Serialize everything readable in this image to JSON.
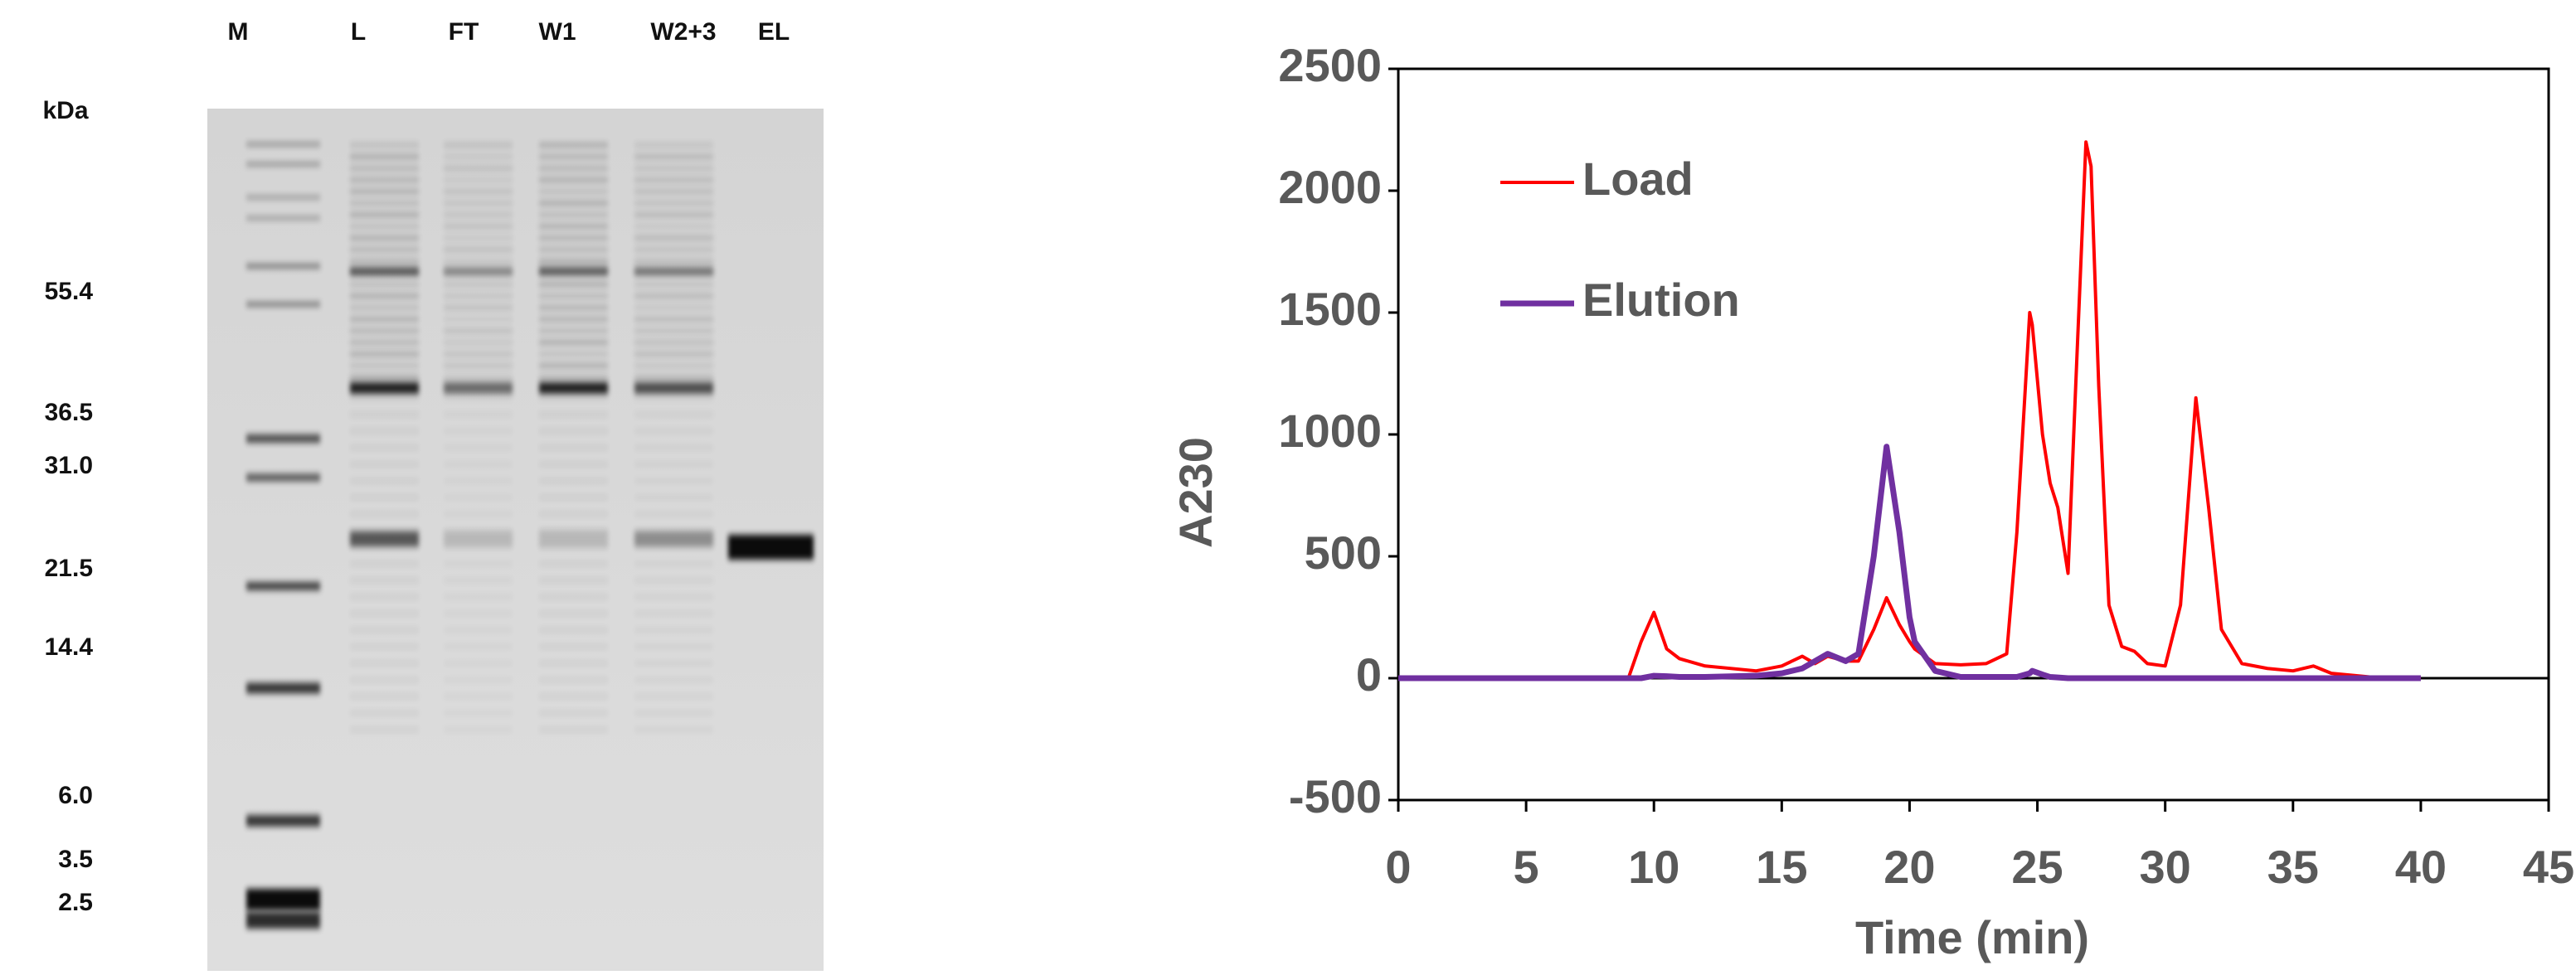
{
  "gel": {
    "lanes": [
      "M",
      "L",
      "FT",
      "W1",
      "W2+3",
      "EL"
    ],
    "unit": "kDa",
    "markers": [
      "55.4",
      "36.5",
      "31.0",
      "21.5",
      "14.4",
      "6.0",
      "3.5",
      "2.5"
    ]
  },
  "chart_data": {
    "type": "line",
    "xlabel": "Time (min)",
    "ylabel": "A230",
    "x": [
      0,
      5,
      9,
      9.5,
      10,
      10.5,
      11,
      12,
      14,
      15,
      15.8,
      16.3,
      16.8,
      17.5,
      18,
      18.6,
      19.1,
      19.6,
      20,
      20.2,
      21,
      22,
      23,
      23.8,
      24.2,
      24.7,
      24.8,
      25.2,
      25.5,
      25.8,
      26.2,
      26.5,
      26.9,
      27.1,
      27.4,
      27.8,
      28.3,
      28.8,
      29.3,
      30,
      30.6,
      31.2,
      31.7,
      32.2,
      33,
      34,
      35,
      35.8,
      36.5,
      38,
      40
    ],
    "series": [
      {
        "name": "Load",
        "color": "#ff0000",
        "values": [
          0,
          0,
          0,
          150,
          270,
          120,
          80,
          50,
          30,
          50,
          90,
          60,
          90,
          70,
          70,
          200,
          330,
          220,
          150,
          120,
          60,
          55,
          60,
          100,
          600,
          1500,
          1450,
          1000,
          800,
          700,
          430,
          1200,
          2200,
          2100,
          1200,
          300,
          130,
          110,
          60,
          50,
          300,
          1150,
          700,
          200,
          60,
          40,
          30,
          50,
          20,
          5,
          0
        ]
      },
      {
        "name": "Elution",
        "color": "#7030a0",
        "values": [
          0,
          0,
          0,
          0,
          10,
          8,
          5,
          5,
          10,
          20,
          40,
          70,
          100,
          70,
          100,
          500,
          950,
          600,
          250,
          150,
          30,
          5,
          5,
          5,
          5,
          20,
          30,
          15,
          5,
          3,
          0,
          0,
          0,
          0,
          0,
          0,
          0,
          0,
          0,
          0,
          0,
          0,
          0,
          0,
          0,
          0,
          0,
          0,
          0,
          0,
          0
        ]
      }
    ],
    "xlim": [
      0,
      45
    ],
    "xticks": [
      0,
      5,
      10,
      15,
      20,
      25,
      30,
      35,
      40,
      45
    ],
    "ylim": [
      -500,
      2500
    ],
    "yticks": [
      -500,
      0,
      500,
      1000,
      1500,
      2000,
      2500
    ],
    "grid": false,
    "legend": "upper left"
  }
}
